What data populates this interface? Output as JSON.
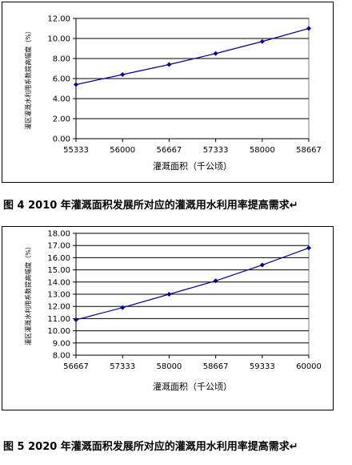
{
  "chart_data": [
    {
      "type": "line",
      "title": "",
      "caption": "图 4  2010 年灌溉面积发展所对应的灌溉用水利用率提高需求↵",
      "xlabel": "灌溉面积（千公顷）",
      "ylabel": "灌区灌溉水利用系数提高幅度（%）",
      "x": [
        55333,
        56000,
        56667,
        57333,
        58000,
        58667
      ],
      "x_tick_labels": [
        "55333",
        "56000",
        "56667",
        "57333",
        "58000",
        "58667"
      ],
      "values": [
        5.4,
        6.4,
        7.4,
        8.5,
        9.7,
        11.0
      ],
      "y_tick_labels": [
        "0.00",
        "2.00",
        "4.00",
        "6.00",
        "8.00",
        "10.00",
        "12.00"
      ],
      "ylim": [
        0,
        12
      ],
      "grid": true,
      "line_color": "#00008B"
    },
    {
      "type": "line",
      "title": "",
      "caption": "图 5  2020 年灌溉面积发展所对应的灌溉用水利用率提高需求↵",
      "xlabel": "灌溉面积（千公顷）",
      "ylabel": "灌区灌溉水利用系数提高幅度（%）",
      "x": [
        56667,
        57333,
        58000,
        58667,
        59333,
        60000
      ],
      "x_tick_labels": [
        "56667",
        "57333",
        "58000",
        "58667",
        "59333",
        "60000"
      ],
      "values": [
        10.9,
        11.9,
        13.0,
        14.1,
        15.4,
        16.8
      ],
      "y_tick_labels": [
        "8.00",
        "9.00",
        "10.00",
        "11.00",
        "12.00",
        "13.00",
        "14.00",
        "15.00",
        "16.00",
        "17.00",
        "18.00"
      ],
      "ylim": [
        8,
        18
      ],
      "grid": true,
      "line_color": "#00008B"
    }
  ]
}
